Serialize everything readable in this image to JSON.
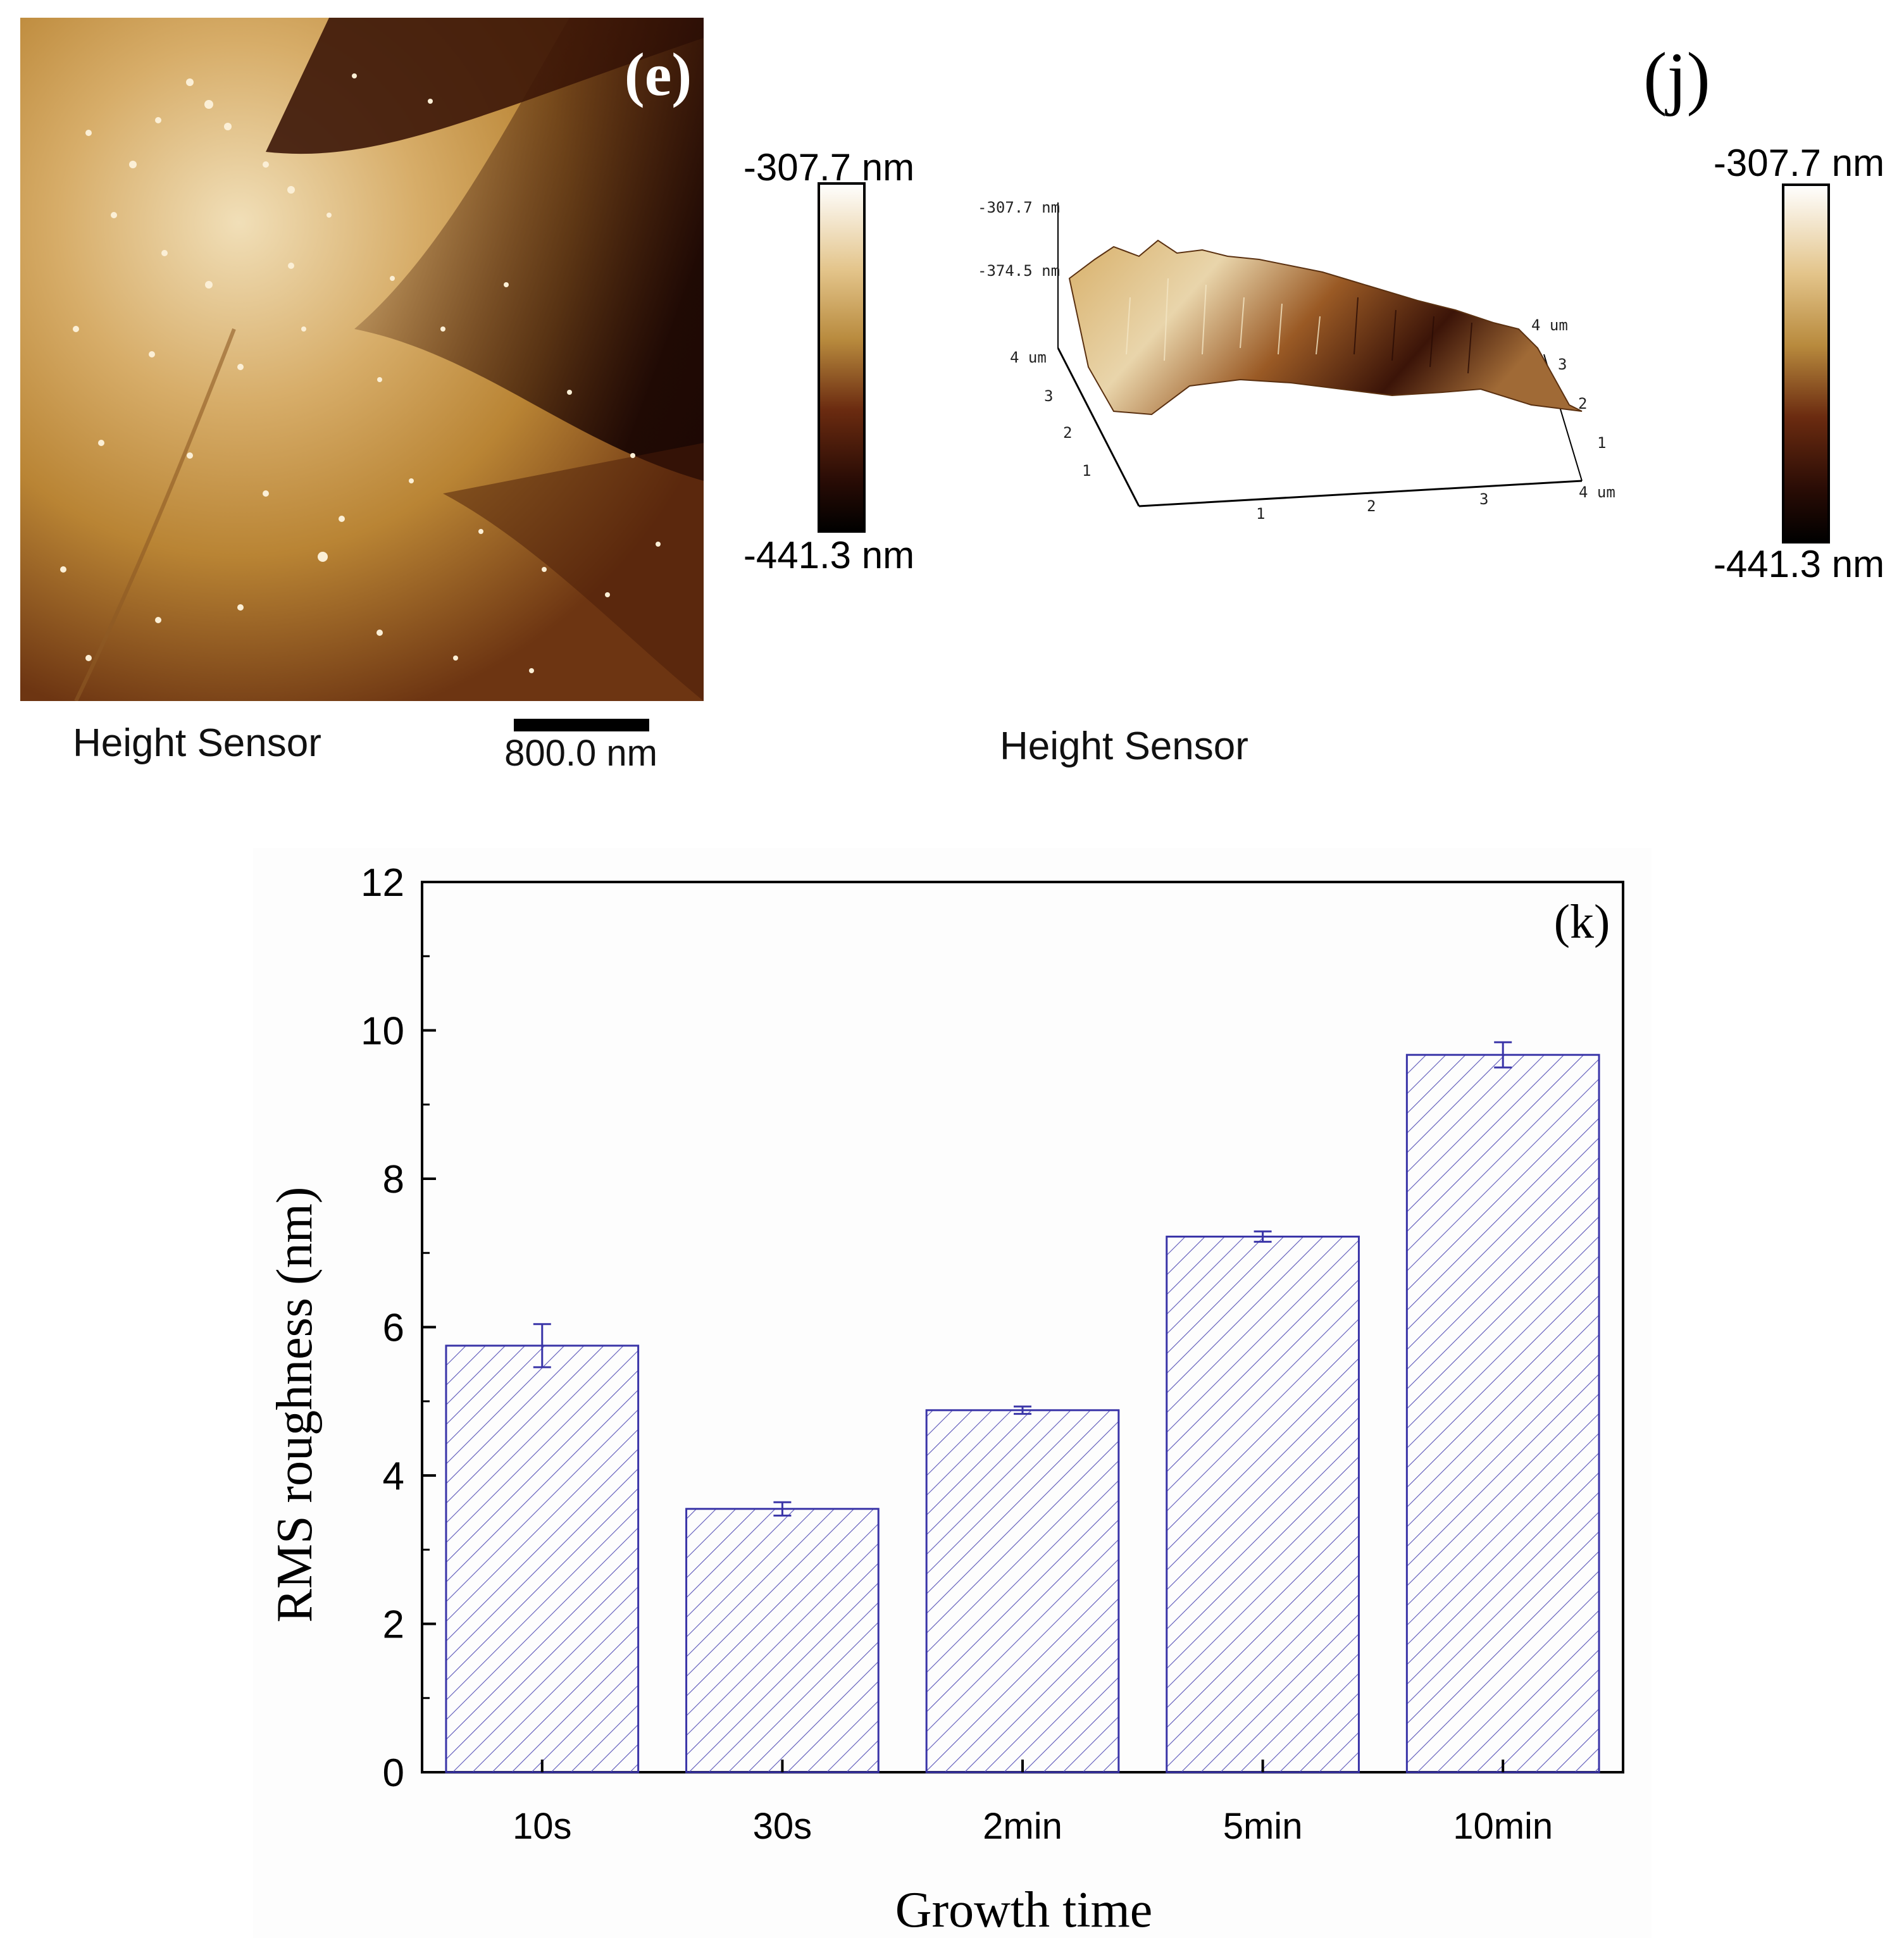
{
  "panel_e": {
    "label": "(e)",
    "caption": "Height Sensor",
    "scale_bar_label": "800.0 nm",
    "colorbar_max": "-307.7 nm",
    "colorbar_min": "-441.3 nm"
  },
  "panel_j": {
    "label": "(j)",
    "caption": "Height Sensor",
    "colorbar_max": "-307.7 nm",
    "colorbar_min": "-441.3 nm",
    "z_tick_top": "-307.7 nm",
    "z_tick_mid": "-374.5 nm",
    "y_axis_ticks": [
      "4 um",
      "3",
      "2",
      "1"
    ],
    "x_axis_ticks": [
      "1",
      "2",
      "3",
      "4 um"
    ],
    "right_axis_ticks": [
      "4 um",
      "3",
      "2",
      "1"
    ]
  },
  "colors": {
    "bar_stroke": "#3a35a8",
    "hatch": "#5a55b8",
    "axis": "#000000"
  },
  "chart_data": {
    "type": "bar",
    "panel_label": "(k)",
    "categories": [
      "10s",
      "30s",
      "2min",
      "5min",
      "10min"
    ],
    "values": [
      5.75,
      3.55,
      4.88,
      7.22,
      9.67
    ],
    "errors": [
      0.29,
      0.09,
      0.05,
      0.07,
      0.17
    ],
    "xlabel": "Growth time",
    "ylabel": "RMS roughness (nm)",
    "ylim": [
      0,
      12
    ],
    "yticks": [
      0,
      2,
      4,
      6,
      8,
      10,
      12
    ],
    "ytick_labels": [
      "0",
      "2",
      "4",
      "6",
      "8",
      "10",
      "12"
    ],
    "fill": "diagonal-hatch"
  }
}
